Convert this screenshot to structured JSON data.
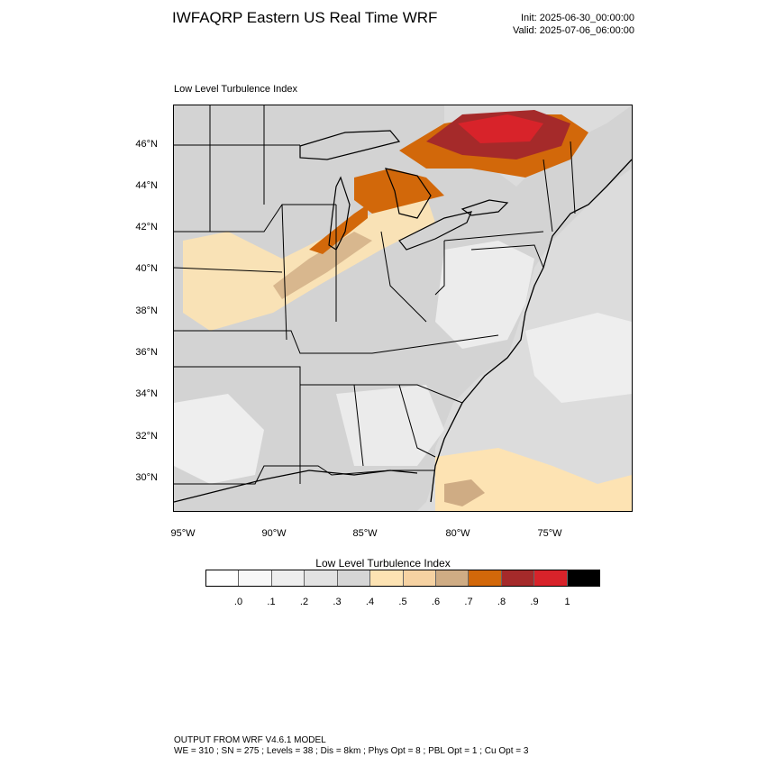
{
  "header": {
    "title": "IWFAQRP Eastern US Real Time WRF",
    "init": "Init: 2025-06-30_00:00:00",
    "valid": "Valid: 2025-07-06_06:00:00"
  },
  "panel": {
    "title": "Low Level Turbulence Index"
  },
  "axes": {
    "lat_labels": [
      "46°N",
      "44°N",
      "42°N",
      "40°N",
      "38°N",
      "36°N",
      "34°N",
      "32°N",
      "30°N"
    ],
    "lon_labels": [
      "95°W",
      "90°W",
      "85°W",
      "80°W",
      "75°W"
    ]
  },
  "colorbar": {
    "title": "Low Level Turbulence Index",
    "colors": [
      "#ffffff",
      "#f7f7f7",
      "#eeeeee",
      "#e2e2e2",
      "#d6d6d6",
      "#fde3b3",
      "#f6d2a2",
      "#cfac84",
      "#d2680a",
      "#a52a2a",
      "#d8232a",
      "#000000"
    ],
    "labels": [
      ".0",
      ".1",
      ".2",
      ".3",
      ".4",
      ".5",
      ".6",
      ".7",
      ".8",
      ".9",
      "1"
    ]
  },
  "map": {
    "background": "#d9d9d9",
    "land_base": "#d6d6d6",
    "light_land": "#eeeeee",
    "boundary_color": "#000000"
  },
  "footer": {
    "line1": "OUTPUT FROM WRF V4.6.1 MODEL",
    "line2": "WE = 310 ; SN = 275 ; Levels = 38 ; Dis = 8km ; Phys Opt = 8 ; PBL Opt = 1 ; Cu Opt = 3"
  }
}
